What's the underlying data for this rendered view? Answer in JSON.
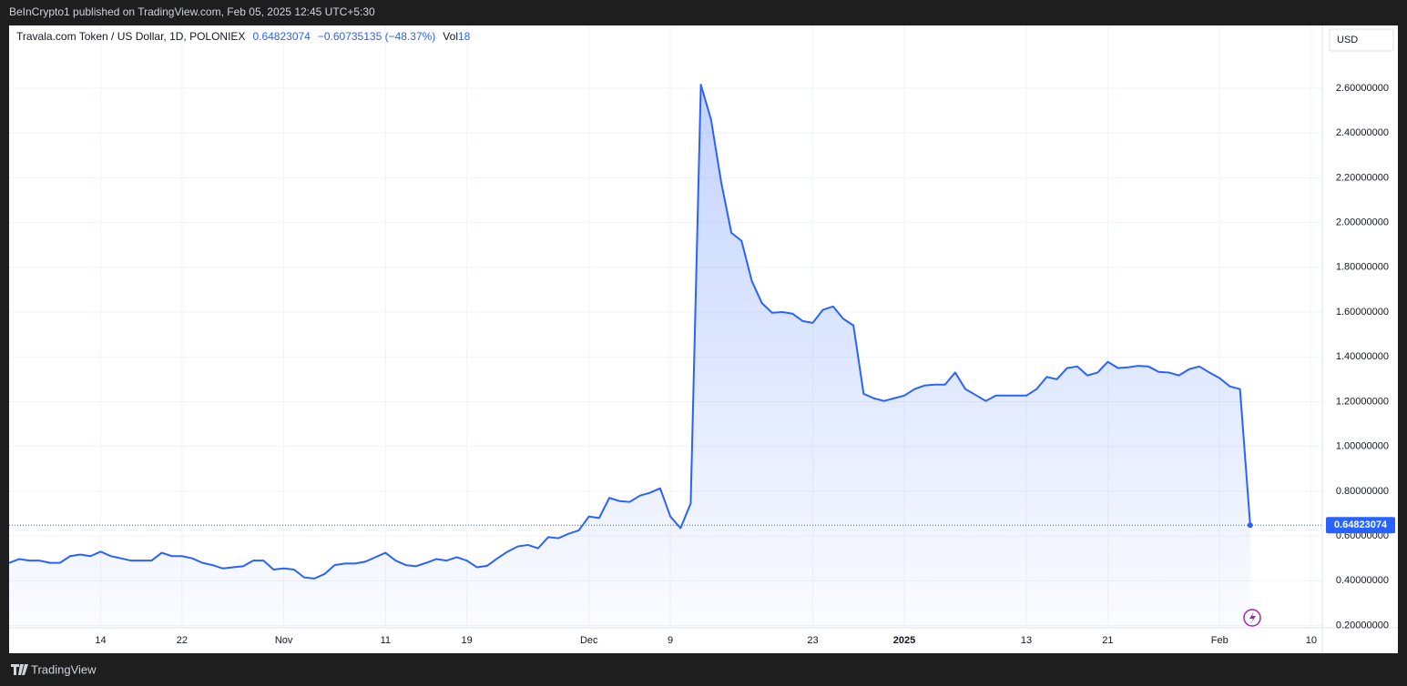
{
  "publisher": "BeInCrypto1 published on TradingView.com, Feb 05, 2025 12:45 UTC+5:30",
  "footer": {
    "brand": "TradingView"
  },
  "chart_data": {
    "type": "area",
    "symbol": "Travala.com Token / US Dollar, 1D, POLONIEX",
    "last_price": "0.64823074",
    "change": "−0.60735135 (−48.37%)",
    "volume_label": "Vol",
    "volume": "18",
    "currency": "USD",
    "color": "#2962ff",
    "grid": true,
    "categories": [
      null,
      null,
      null,
      null,
      null,
      null,
      null,
      null,
      null,
      "14",
      null,
      null,
      null,
      null,
      null,
      null,
      null,
      "22",
      null,
      null,
      null,
      null,
      null,
      null,
      null,
      null,
      null,
      "Nov",
      null,
      null,
      null,
      null,
      null,
      null,
      null,
      null,
      null,
      "11",
      null,
      null,
      null,
      null,
      null,
      null,
      null,
      "19",
      null,
      null,
      null,
      null,
      null,
      null,
      null,
      null,
      null,
      null,
      null,
      "Dec",
      null,
      null,
      null,
      null,
      null,
      null,
      null,
      "9",
      null,
      null,
      null,
      null,
      null,
      null,
      null,
      null,
      null,
      null,
      null,
      null,
      null,
      "23",
      null,
      null,
      null,
      null,
      null,
      null,
      null,
      null,
      "2025",
      null,
      null,
      null,
      null,
      null,
      null,
      null,
      null,
      null,
      null,
      null,
      "13",
      null,
      null,
      null,
      null,
      null,
      null,
      null,
      "21",
      null,
      null,
      null,
      null,
      null,
      null,
      null,
      null,
      null,
      null,
      "Feb",
      null,
      null,
      null,
      null,
      null,
      null,
      null,
      null,
      "10",
      null
    ],
    "values": [
      0.48,
      0.497,
      0.49,
      0.49,
      0.48,
      0.48,
      0.51,
      0.517,
      0.51,
      0.53,
      0.51,
      0.5,
      0.49,
      0.49,
      0.49,
      0.525,
      0.51,
      0.51,
      0.5,
      0.48,
      0.47,
      0.455,
      0.46,
      0.465,
      0.49,
      0.49,
      0.45,
      0.455,
      0.45,
      0.415,
      0.41,
      0.43,
      0.47,
      0.477,
      0.477,
      0.485,
      0.505,
      0.525,
      0.49,
      0.47,
      0.465,
      0.48,
      0.497,
      0.49,
      0.505,
      0.49,
      0.46,
      0.467,
      0.5,
      0.53,
      0.553,
      0.56,
      0.545,
      0.595,
      0.59,
      0.61,
      0.625,
      0.687,
      0.68,
      0.77,
      0.756,
      0.752,
      0.78,
      0.793,
      0.813,
      0.687,
      0.635,
      0.745,
      2.616,
      2.46,
      2.18,
      1.954,
      1.918,
      1.74,
      1.64,
      1.597,
      1.6,
      1.593,
      1.56,
      1.552,
      1.61,
      1.625,
      1.57,
      1.54,
      1.235,
      1.215,
      1.203,
      1.215,
      1.227,
      1.256,
      1.272,
      1.276,
      1.276,
      1.33,
      1.256,
      1.23,
      1.203,
      1.227,
      1.227,
      1.227,
      1.227,
      1.256,
      1.31,
      1.3,
      1.35,
      1.357,
      1.317,
      1.33,
      1.378,
      1.35,
      1.353,
      1.36,
      1.357,
      1.333,
      1.33,
      1.317,
      1.345,
      1.357,
      1.33,
      1.305,
      1.268,
      1.256,
      0.64823074,
      null,
      null,
      null,
      null,
      null,
      null,
      null
    ],
    "ylim": [
      0.19,
      2.88
    ],
    "yticks": [
      {
        "value": 0.2,
        "label": "0.20000000"
      },
      {
        "value": 0.4,
        "label": "0.40000000"
      },
      {
        "value": 0.6,
        "label": "0.60000000"
      },
      {
        "value": 0.8,
        "label": "0.80000000"
      },
      {
        "value": 1.0,
        "label": "1.00000000"
      },
      {
        "value": 1.2,
        "label": "1.20000000"
      },
      {
        "value": 1.4,
        "label": "1.40000000"
      },
      {
        "value": 1.6,
        "label": "1.60000000"
      },
      {
        "value": 1.8,
        "label": "1.80000000"
      },
      {
        "value": 2.0,
        "label": "2.00000000"
      },
      {
        "value": 2.2,
        "label": "2.20000000"
      },
      {
        "value": 2.4,
        "label": "2.40000000"
      },
      {
        "value": 2.6,
        "label": "2.60000000"
      }
    ]
  }
}
